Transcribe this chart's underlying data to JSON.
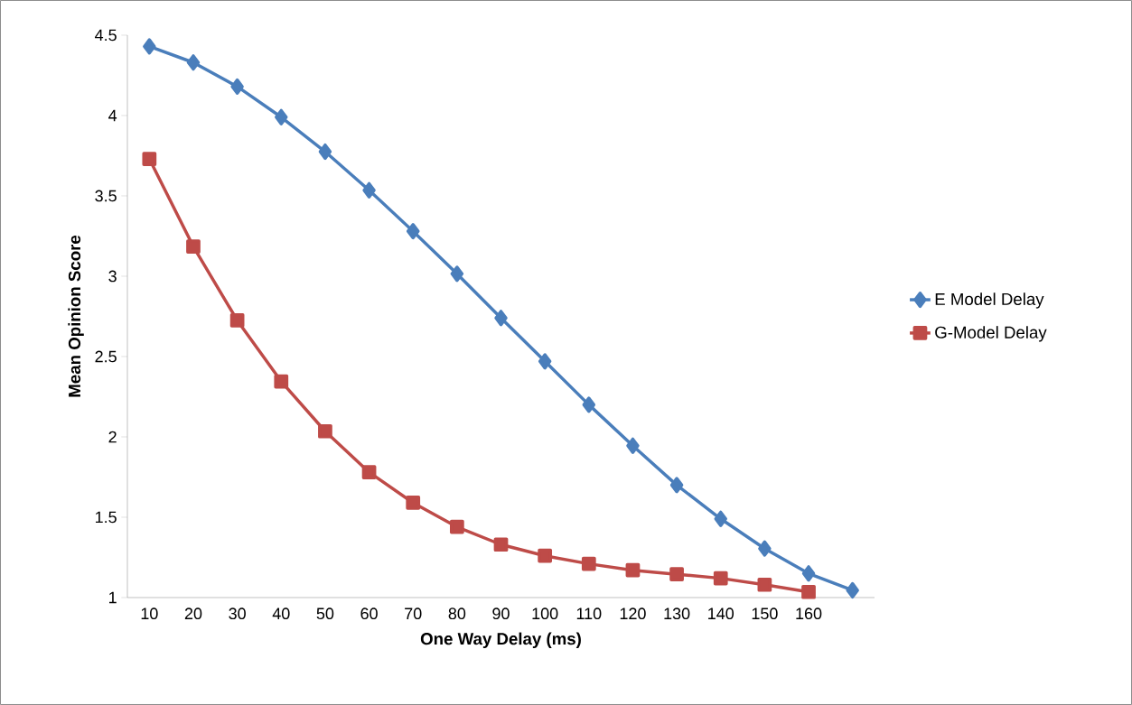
{
  "chart_data": {
    "type": "line",
    "xlabel": "One Way Delay (ms)",
    "ylabel": "Mean Opinion Score",
    "categories": [
      "10",
      "20",
      "30",
      "40",
      "50",
      "60",
      "70",
      "80",
      "90",
      "100",
      "110",
      "120",
      "130",
      "140",
      "150",
      "160",
      null
    ],
    "ylim": [
      1,
      4.5
    ],
    "yticks": [
      1,
      1.5,
      2,
      2.5,
      3,
      3.5,
      4,
      4.5
    ],
    "legend": "right",
    "series": [
      {
        "name": "E Model Delay",
        "color": "#4a7ebb",
        "marker": "diamond",
        "values": [
          4.43,
          4.33,
          4.18,
          3.99,
          3.775,
          3.535,
          3.28,
          3.015,
          2.74,
          2.47,
          2.2,
          1.945,
          1.7,
          1.49,
          1.305,
          1.15,
          1.045
        ]
      },
      {
        "name": "G-Model Delay",
        "color": "#be4b48",
        "marker": "square",
        "values": [
          3.73,
          3.185,
          2.725,
          2.345,
          2.035,
          1.78,
          1.59,
          1.44,
          1.33,
          1.26,
          1.21,
          1.17,
          1.145,
          1.12,
          1.08,
          1.035,
          null
        ]
      }
    ]
  }
}
